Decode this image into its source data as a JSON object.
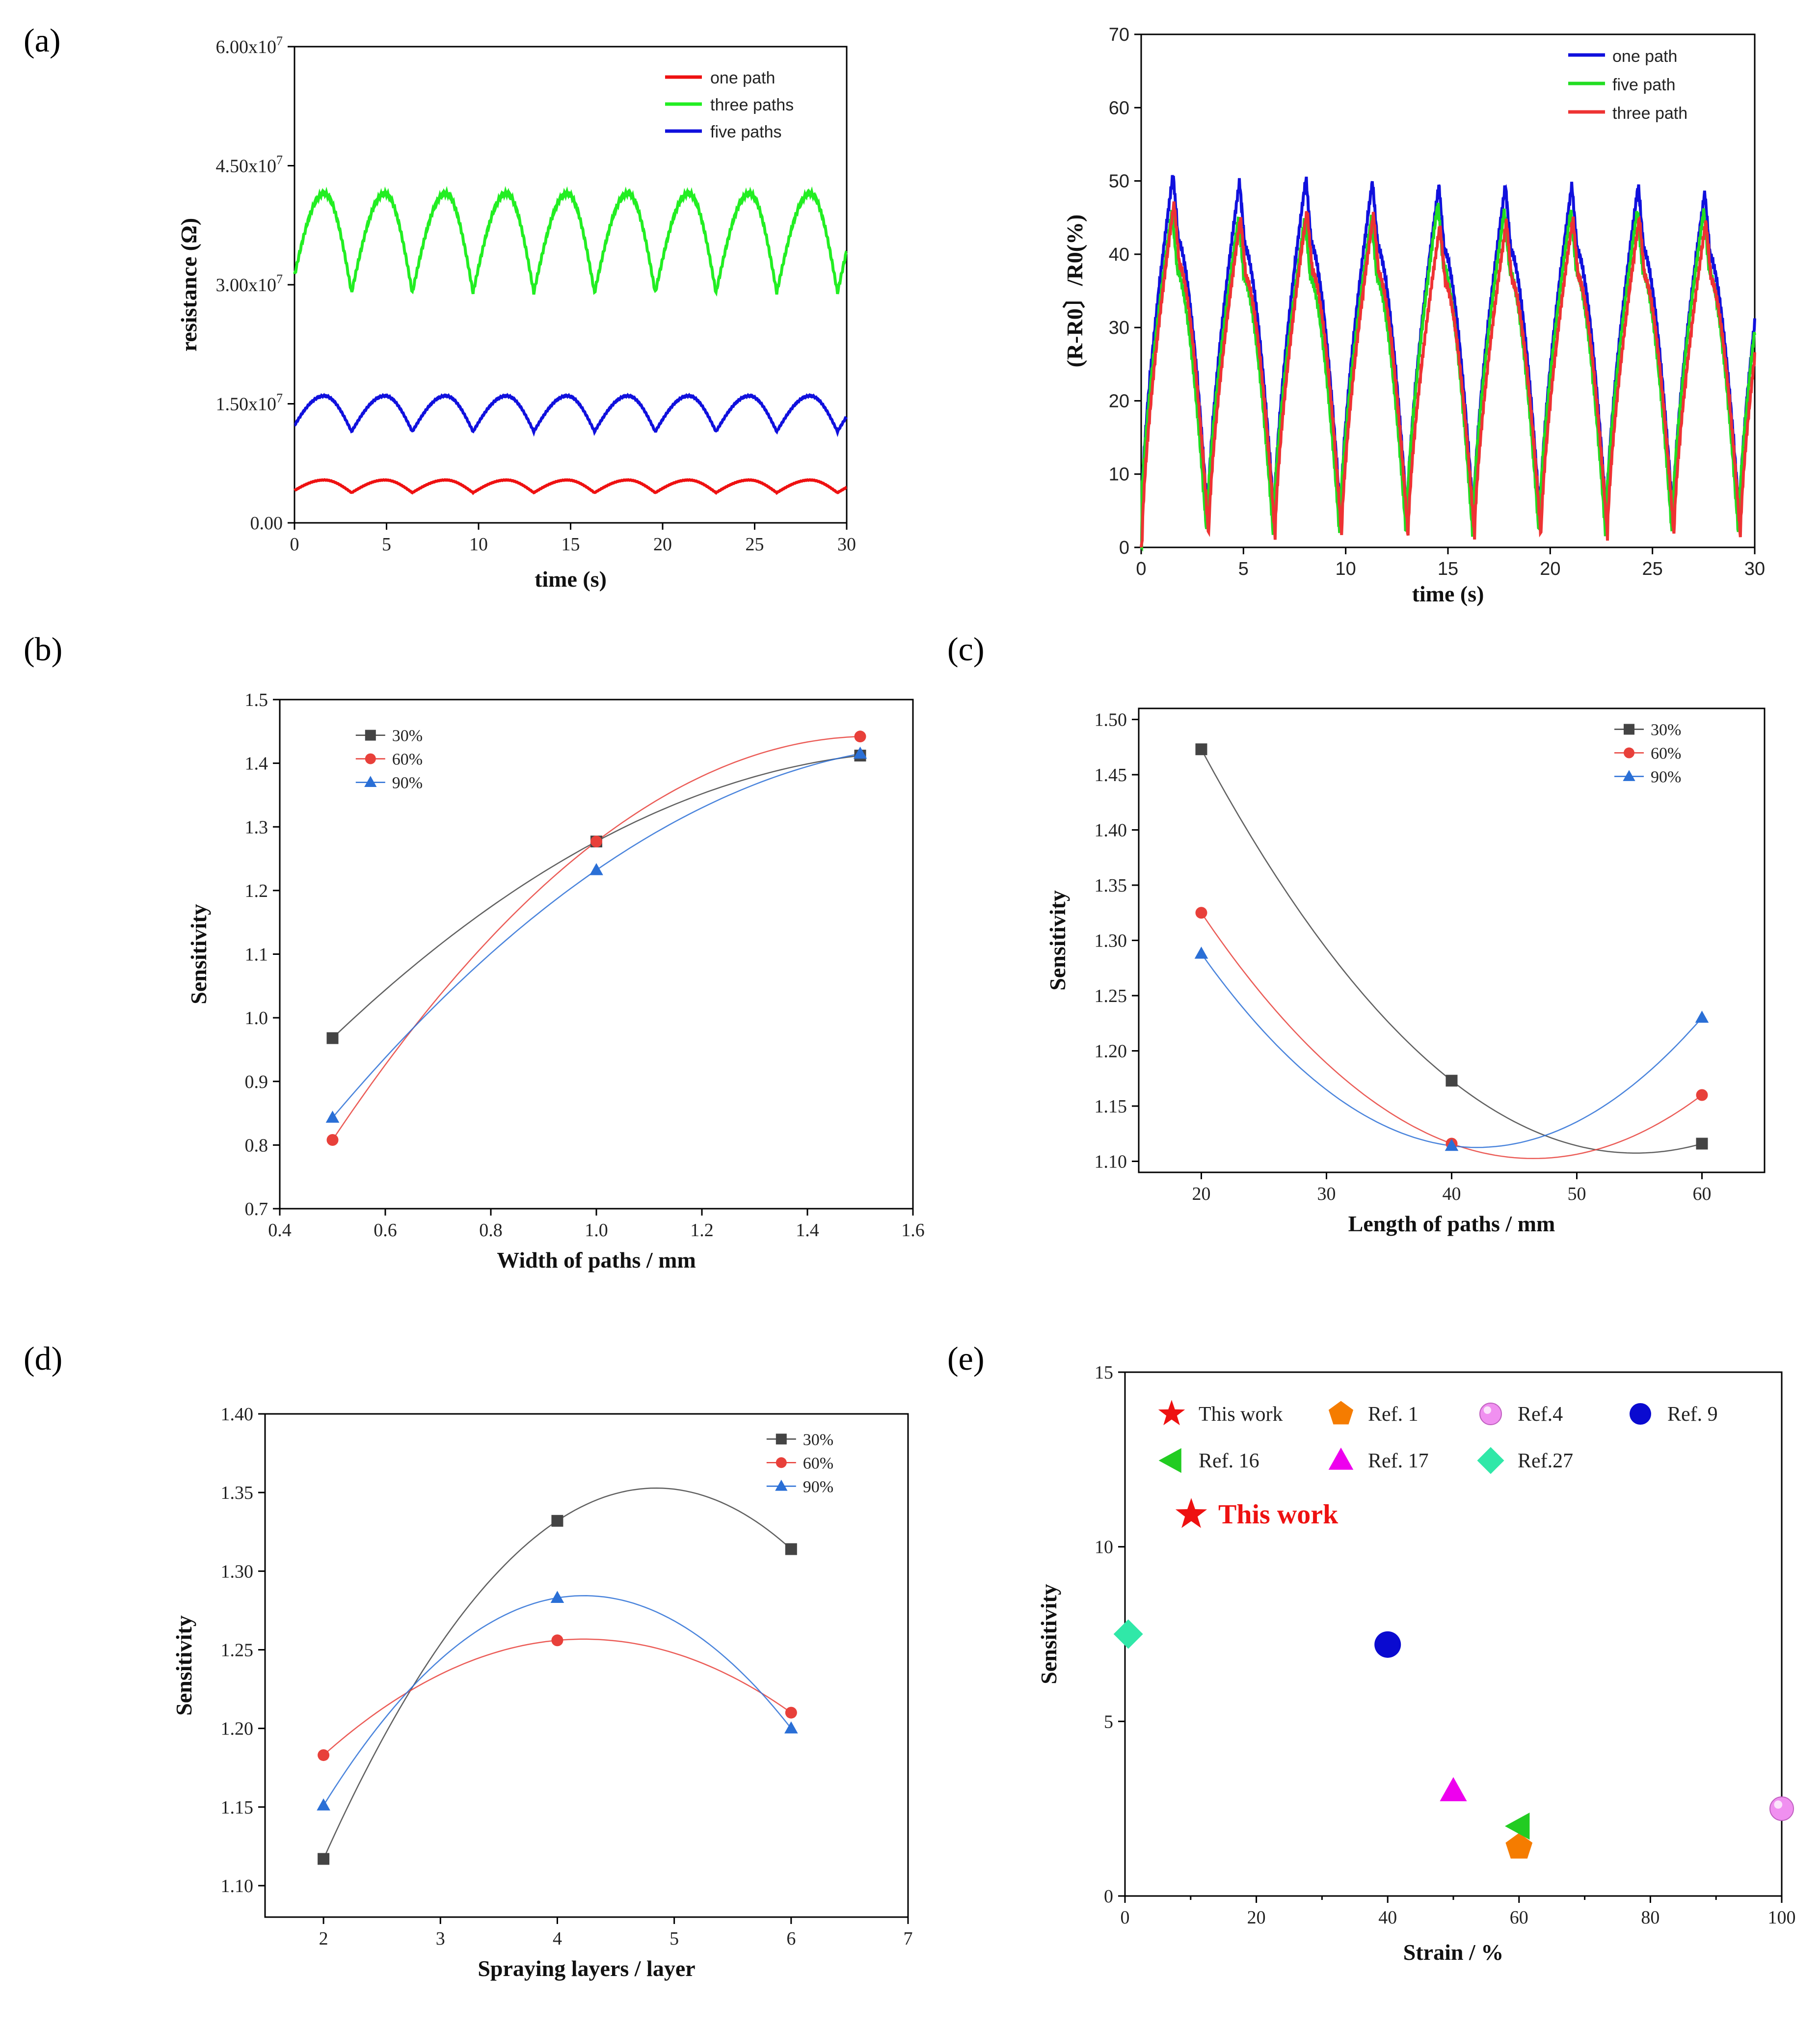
{
  "panels": {
    "a": "(a)",
    "b": "(b)",
    "c": "(c)",
    "d": "(d)",
    "e": "(e)"
  },
  "chart_data": [
    {
      "id": "a-left",
      "type": "line",
      "xlabel": "time (s)",
      "ylabel": "resistance (Ω)",
      "xlim": [
        0,
        30
      ],
      "ylim": [
        0,
        60000000
      ],
      "xticks": [
        "0",
        "5",
        "10",
        "15",
        "20",
        "25",
        "30"
      ],
      "yticks": [
        "0.00",
        "1.50x10⁷",
        "3.00x10⁷",
        "4.50x10⁷",
        "6.00x10⁷"
      ],
      "period_s": 3.3,
      "series": [
        {
          "name": "one path",
          "color": "#ee1111",
          "min": 3800000,
          "max": 5400000,
          "start": 3800000
        },
        {
          "name": "three paths",
          "color": "#22ee22",
          "min": 29000000,
          "max": 41500000,
          "start": 28800000
        },
        {
          "name": "five paths",
          "color": "#1010dd",
          "min": 11500000,
          "max": 16000000,
          "start": 11000000
        }
      ]
    },
    {
      "id": "a-right",
      "type": "line",
      "xlabel": "time (s)",
      "ylabel": "(R-R0〕/R0(%)",
      "xlim": [
        0,
        30
      ],
      "ylim": [
        0,
        70
      ],
      "xticks": [
        "0",
        "5",
        "10",
        "15",
        "20",
        "25",
        "30"
      ],
      "yticks": [
        "0",
        "10",
        "20",
        "30",
        "40",
        "50",
        "60",
        "70"
      ],
      "period_s": 3.25,
      "series": [
        {
          "name": "one path",
          "color": "#1010dd",
          "peaks": [
            51,
            50,
            50.5,
            50,
            49.5,
            49.5,
            49.5,
            49.5,
            48.5
          ],
          "min": 4
        },
        {
          "name": "five path",
          "color": "#22dd22",
          "peaks": [
            46,
            45,
            45,
            45,
            47,
            46,
            46,
            46,
            46
          ],
          "min": 2
        },
        {
          "name": "three path",
          "color": "#ee3333",
          "peaks": [
            47,
            45,
            46,
            45.5,
            44,
            44.5,
            45,
            45,
            44.5
          ],
          "min": 1.5
        }
      ]
    },
    {
      "id": "b",
      "type": "scatter",
      "xlabel": "Width of paths / mm",
      "ylabel": "Sensitivity",
      "xlim": [
        0.4,
        1.6
      ],
      "ylim": [
        0.7,
        1.5
      ],
      "xticks": [
        "0.4",
        "0.6",
        "0.8",
        "1.0",
        "1.2",
        "1.4",
        "1.6"
      ],
      "yticks": [
        "0.7",
        "0.8",
        "0.9",
        "1.0",
        "1.1",
        "1.2",
        "1.3",
        "1.4",
        "1.5"
      ],
      "x": [
        0.5,
        1.0,
        1.5
      ],
      "series": [
        {
          "name": "30%",
          "marker": "square",
          "color": "#444444",
          "values": [
            0.968,
            1.277,
            1.412
          ]
        },
        {
          "name": "60%",
          "marker": "circle",
          "color": "#e8403a",
          "values": [
            0.808,
            1.277,
            1.442
          ]
        },
        {
          "name": "90%",
          "marker": "triangle",
          "color": "#2a6fd6",
          "values": [
            0.843,
            1.232,
            1.415
          ]
        }
      ]
    },
    {
      "id": "c",
      "type": "scatter",
      "xlabel": "Length of paths / mm",
      "ylabel": "Sensitivity",
      "xlim": [
        15,
        65
      ],
      "ylim": [
        1.09,
        1.51
      ],
      "xticks": [
        "20",
        "30",
        "40",
        "50",
        "60"
      ],
      "yticks": [
        "1.10",
        "1.15",
        "1.20",
        "1.25",
        "1.30",
        "1.35",
        "1.40",
        "1.45",
        "1.50"
      ],
      "x": [
        20,
        40,
        60
      ],
      "series": [
        {
          "name": "30%",
          "marker": "square",
          "color": "#444444",
          "values": [
            1.473,
            1.173,
            1.116
          ]
        },
        {
          "name": "60%",
          "marker": "circle",
          "color": "#e8403a",
          "values": [
            1.325,
            1.116,
            1.16
          ]
        },
        {
          "name": "90%",
          "marker": "triangle",
          "color": "#2a6fd6",
          "values": [
            1.288,
            1.114,
            1.23
          ]
        }
      ]
    },
    {
      "id": "d",
      "type": "scatter",
      "xlabel": "Spraying layers / layer",
      "ylabel": "Sensitivity",
      "xlim": [
        1.5,
        7
      ],
      "ylim": [
        1.08,
        1.4
      ],
      "xticks": [
        "2",
        "3",
        "4",
        "5",
        "6",
        "7"
      ],
      "yticks": [
        "1.10",
        "1.15",
        "1.20",
        "1.25",
        "1.30",
        "1.35",
        "1.40"
      ],
      "x": [
        2,
        4,
        6
      ],
      "series": [
        {
          "name": "30%",
          "marker": "square",
          "color": "#444444",
          "values": [
            1.117,
            1.332,
            1.314
          ]
        },
        {
          "name": "60%",
          "marker": "circle",
          "color": "#e8403a",
          "values": [
            1.183,
            1.256,
            1.21
          ]
        },
        {
          "name": "90%",
          "marker": "triangle",
          "color": "#2a6fd6",
          "values": [
            1.151,
            1.283,
            1.2
          ]
        }
      ]
    },
    {
      "id": "e",
      "type": "scatter",
      "xlabel": "Strain / %",
      "ylabel": "Sensitivity",
      "xlim": [
        0,
        100
      ],
      "ylim": [
        0,
        15
      ],
      "xticks": [
        "0",
        "20",
        "40",
        "60",
        "80",
        "100"
      ],
      "yticks": [
        "0",
        "5",
        "10",
        "15"
      ],
      "annotation": "This work",
      "series": [
        {
          "name": "This work",
          "marker": "star",
          "color": "#ee1111",
          "x": null,
          "y": null
        },
        {
          "name": "Ref. 1",
          "marker": "pentagon",
          "color": "#f57c00",
          "x": 60,
          "y": 1.4
        },
        {
          "name": "Ref.4",
          "marker": "sphere",
          "color": "#f090f0",
          "x": 100,
          "y": 2.5
        },
        {
          "name": "Ref. 9",
          "marker": "circle",
          "color": "#0a0ad0",
          "x": 40,
          "y": 7.2
        },
        {
          "name": "Ref. 16",
          "marker": "left-triangle",
          "color": "#22cc22",
          "x": 60,
          "y": 2.0
        },
        {
          "name": "Ref. 17",
          "marker": "triangle",
          "color": "#ee00ee",
          "x": 50,
          "y": 3.0
        },
        {
          "name": "Ref.27",
          "marker": "diamond",
          "color": "#30e8a8",
          "x": 0.5,
          "y": 7.5
        }
      ]
    }
  ]
}
